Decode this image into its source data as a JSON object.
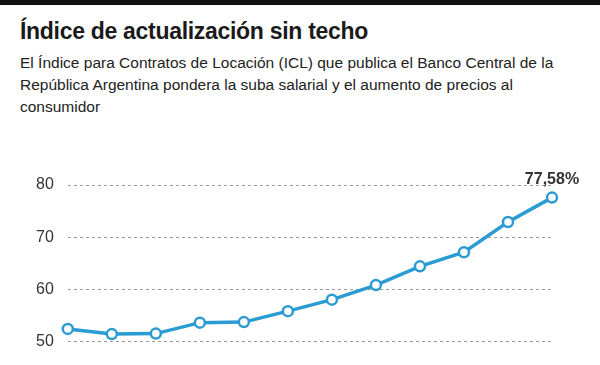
{
  "chart_data": {
    "type": "line",
    "title": "Índice de actualización sin techo",
    "subtitle": "El Índice para Contratos de Locación (ICL) que publica el Banco Central de la República Argentina pondera la suba salarial y el aumento de precios al consumidor",
    "categories": [
      null,
      null,
      null,
      null,
      null,
      null,
      null,
      null,
      null,
      null,
      null,
      null
    ],
    "values": [
      52.4,
      51.4,
      51.5,
      53.6,
      53.7,
      55.8,
      58.0,
      60.8,
      64.4,
      67.1,
      72.9,
      77.58
    ],
    "value_labels": [
      null,
      null,
      null,
      null,
      null,
      null,
      null,
      null,
      null,
      null,
      null,
      "77,58%"
    ],
    "data_labels": true,
    "color": "#2b9bd3",
    "marker": "circle",
    "ylim": [
      50,
      80
    ],
    "yticks": [
      50,
      60,
      70,
      80
    ],
    "grid": true,
    "tick_labels": "y"
  }
}
